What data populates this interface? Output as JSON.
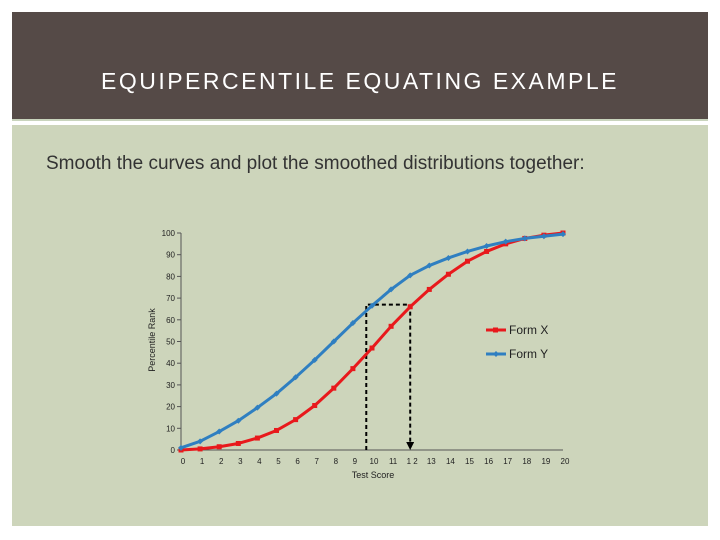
{
  "slide": {
    "title": "EQUIPERCENTILE EQUATING EXAMPLE",
    "body_text": "Smooth the curves and plot the smoothed distributions together:"
  },
  "colors": {
    "header_bg": "#554a47",
    "panel_bg": "#cdd5bb",
    "form_x": "#e8191c",
    "form_y": "#2f7fc1"
  },
  "chart_data": {
    "type": "line",
    "title": "",
    "xlabel": "Test Score",
    "ylabel": "Percentile Rank",
    "xlim": [
      0,
      20
    ],
    "ylim": [
      0,
      100
    ],
    "grid": false,
    "legend_position": "right",
    "x_ticks": [
      "0",
      "1",
      "2",
      "3",
      "4",
      "5",
      "6",
      "7",
      "8",
      "9",
      "10",
      "11",
      "1 2",
      "13",
      "14",
      "15",
      "16",
      "17",
      "18",
      "19",
      "20"
    ],
    "y_ticks": [
      "0",
      "10",
      "20",
      "30",
      "40",
      "50",
      "60",
      "70",
      "80",
      "90",
      "100"
    ],
    "x": [
      0,
      1,
      2,
      3,
      4,
      5,
      6,
      7,
      8,
      9,
      10,
      11,
      12,
      13,
      14,
      15,
      16,
      17,
      18,
      19,
      20
    ],
    "series": [
      {
        "name": "Form X",
        "marker": "square",
        "values": [
          0,
          0.5,
          1.5,
          3,
          5.5,
          9,
          14,
          20.5,
          28.5,
          37.5,
          47,
          57,
          66,
          74,
          81,
          87,
          91.5,
          95,
          97.5,
          99,
          100
        ]
      },
      {
        "name": "Form Y",
        "marker": "diamond",
        "values": [
          1,
          4,
          8.5,
          13.5,
          19.5,
          26,
          33.5,
          41.5,
          50,
          58.5,
          66.5,
          74,
          80.5,
          85,
          88.5,
          91.5,
          94,
          96,
          97.5,
          98.5,
          99.5
        ]
      }
    ],
    "annotations": [
      {
        "type": "dashed-box",
        "x_from": 9.7,
        "x_to": 12,
        "y_from": 0,
        "y_to": 67
      },
      {
        "type": "arrow-down",
        "x": 12,
        "y_from": 67,
        "y_to": 0
      }
    ]
  }
}
